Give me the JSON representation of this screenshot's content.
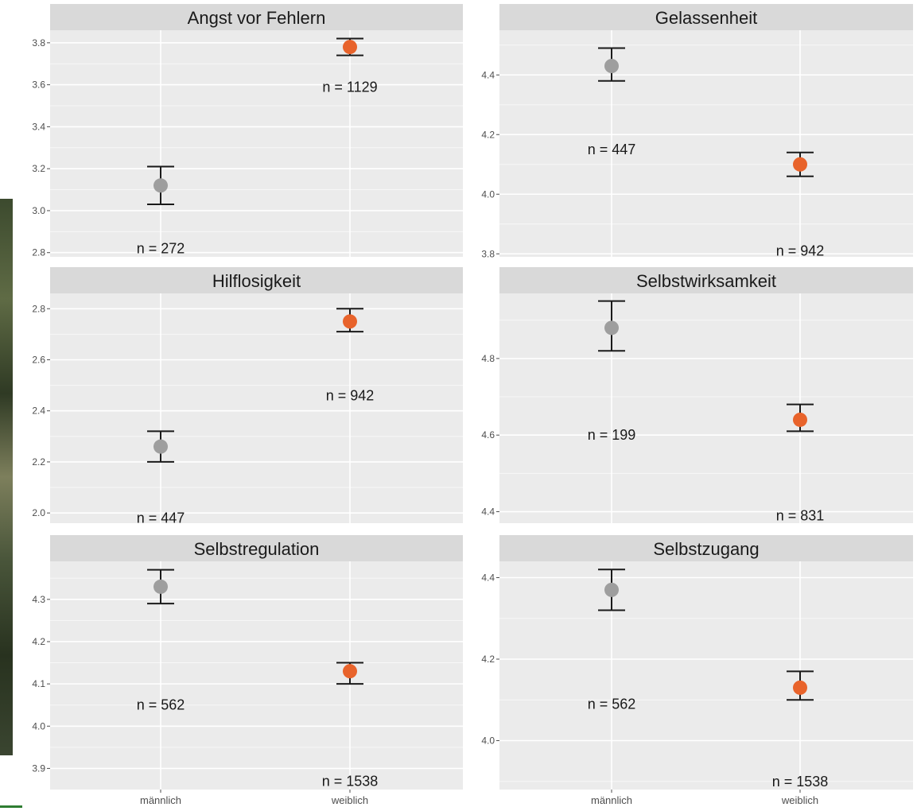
{
  "chart_data": {
    "type": "scatter",
    "layout": "faceted 3x2",
    "x_categories": [
      "männlich",
      "weiblich"
    ],
    "colors": {
      "männlich": "#9e9e9e",
      "weiblich": "#e8632b",
      "panel": "#ebebeb",
      "strip": "#d9d9d9",
      "errorbar": "#1a1a1a"
    },
    "panels": [
      {
        "title": "Angst vor Fehlern",
        "ylim": [
          2.78,
          3.86
        ],
        "yticks": [
          2.8,
          3.0,
          3.2,
          3.4,
          3.6,
          3.8
        ],
        "ytick_labels": [
          "2.8",
          "3.0",
          "3.2",
          "3.4",
          "3.6",
          "3.8"
        ],
        "points": [
          {
            "group": "männlich",
            "mean": 3.12,
            "lower": 3.03,
            "upper": 3.21,
            "n_label": "n =  272",
            "n_y": 2.82
          },
          {
            "group": "weiblich",
            "mean": 3.78,
            "lower": 3.74,
            "upper": 3.82,
            "n_label": "n =  1129",
            "n_y": 3.59
          }
        ]
      },
      {
        "title": "Gelassenheit",
        "ylim": [
          3.79,
          4.55
        ],
        "yticks": [
          3.8,
          4.0,
          4.2,
          4.4
        ],
        "ytick_labels": [
          "3.8",
          "4.0",
          "4.2",
          "4.4"
        ],
        "points": [
          {
            "group": "männlich",
            "mean": 4.43,
            "lower": 4.38,
            "upper": 4.49,
            "n_label": "n =  447",
            "n_y": 4.15
          },
          {
            "group": "weiblich",
            "mean": 4.1,
            "lower": 4.06,
            "upper": 4.14,
            "n_label": "n =  942",
            "n_y": 3.81
          }
        ]
      },
      {
        "title": "Hilflosigkeit",
        "ylim": [
          1.96,
          2.86
        ],
        "yticks": [
          2.0,
          2.2,
          2.4,
          2.6,
          2.8
        ],
        "ytick_labels": [
          "2.0",
          "2.2",
          "2.4",
          "2.6",
          "2.8"
        ],
        "points": [
          {
            "group": "männlich",
            "mean": 2.26,
            "lower": 2.2,
            "upper": 2.32,
            "n_label": "n =  447",
            "n_y": 1.98
          },
          {
            "group": "weiblich",
            "mean": 2.75,
            "lower": 2.71,
            "upper": 2.8,
            "n_label": "n =  942",
            "n_y": 2.46
          }
        ]
      },
      {
        "title": "Selbstwirksamkeit",
        "ylim": [
          4.37,
          4.97
        ],
        "yticks": [
          4.4,
          4.6,
          4.8
        ],
        "ytick_labels": [
          "4.4",
          "4.6",
          "4.8"
        ],
        "points": [
          {
            "group": "männlich",
            "mean": 4.88,
            "lower": 4.82,
            "upper": 4.95,
            "n_label": "n =  199",
            "n_y": 4.6
          },
          {
            "group": "weiblich",
            "mean": 4.64,
            "lower": 4.61,
            "upper": 4.68,
            "n_label": "n =  831",
            "n_y": 4.39
          }
        ]
      },
      {
        "title": "Selbstregulation",
        "ylim": [
          3.85,
          4.39
        ],
        "yticks": [
          3.9,
          4.0,
          4.1,
          4.2,
          4.3
        ],
        "ytick_labels": [
          "3.9",
          "4.0",
          "4.1",
          "4.2",
          "4.3"
        ],
        "points": [
          {
            "group": "männlich",
            "mean": 4.33,
            "lower": 4.29,
            "upper": 4.37,
            "n_label": "n =  562",
            "n_y": 4.05
          },
          {
            "group": "weiblich",
            "mean": 4.13,
            "lower": 4.1,
            "upper": 4.15,
            "n_label": "n =  1538",
            "n_y": 3.87
          }
        ]
      },
      {
        "title": "Selbstzugang",
        "ylim": [
          3.88,
          4.44
        ],
        "yticks": [
          4.0,
          4.2,
          4.4
        ],
        "ytick_labels": [
          "4.0",
          "4.2",
          "4.4"
        ],
        "points": [
          {
            "group": "männlich",
            "mean": 4.37,
            "lower": 4.32,
            "upper": 4.42,
            "n_label": "n =  562",
            "n_y": 4.09
          },
          {
            "group": "weiblich",
            "mean": 4.13,
            "lower": 4.1,
            "upper": 4.17,
            "n_label": "n =  1538",
            "n_y": 3.9
          }
        ]
      }
    ]
  }
}
